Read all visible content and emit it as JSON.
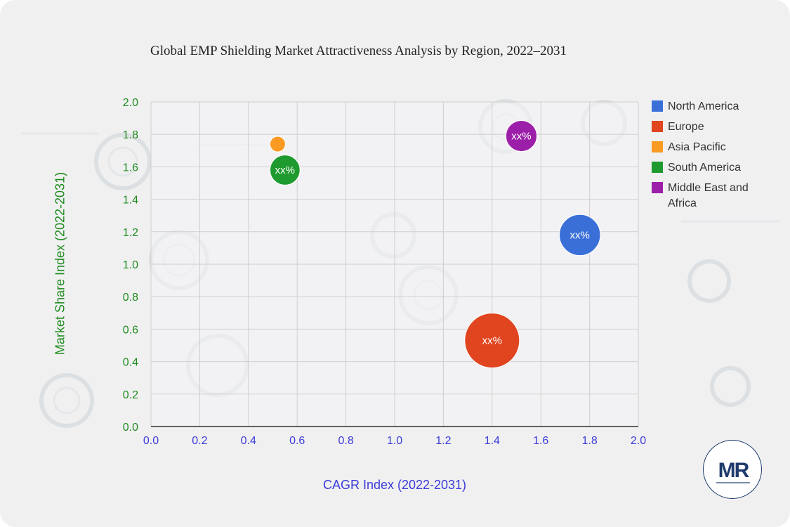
{
  "chart_data": {
    "type": "bubble",
    "title": "Global EMP Shielding Market Attractiveness Analysis by Region, 2022–2031",
    "xlabel": "CAGR Index (2022-2031)",
    "ylabel": "Market Share Index (2022-2031)",
    "xlim": [
      0,
      2.0
    ],
    "ylim": [
      0,
      2.0
    ],
    "x_ticks": [
      "0.0",
      "0.2",
      "0.4",
      "0.6",
      "0.8",
      "1.0",
      "1.2",
      "1.4",
      "1.6",
      "1.8",
      "2.0"
    ],
    "y_ticks": [
      "0.0",
      "0.2",
      "0.4",
      "0.6",
      "0.8",
      "1.0",
      "1.2",
      "1.4",
      "1.6",
      "1.8",
      "2.0"
    ],
    "grid": true,
    "legend_position": "right",
    "series": [
      {
        "name": "North America",
        "color": "#3a6fd8",
        "x": 1.76,
        "y": 1.18,
        "size": 0.56,
        "label": "xx%"
      },
      {
        "name": "Europe",
        "color": "#e0451f",
        "x": 1.4,
        "y": 0.53,
        "size": 1.0,
        "label": "xx%"
      },
      {
        "name": "Asia Pacific",
        "color": "#fb9a23",
        "x": 0.52,
        "y": 1.74,
        "size": 0.08,
        "label": ""
      },
      {
        "name": "South America",
        "color": "#1f9a2f",
        "x": 0.55,
        "y": 1.58,
        "size": 0.3,
        "label": "xx%"
      },
      {
        "name": "Middle East and Africa",
        "color": "#9c1fa9",
        "x": 1.52,
        "y": 1.79,
        "size": 0.32,
        "label": "xx%"
      }
    ]
  },
  "colors": {
    "x_axis_text": "#3b3bd8",
    "y_axis_text": "#1e8b1e"
  },
  "logo": {
    "text": "MR",
    "icon": "mr-logo-icon"
  }
}
